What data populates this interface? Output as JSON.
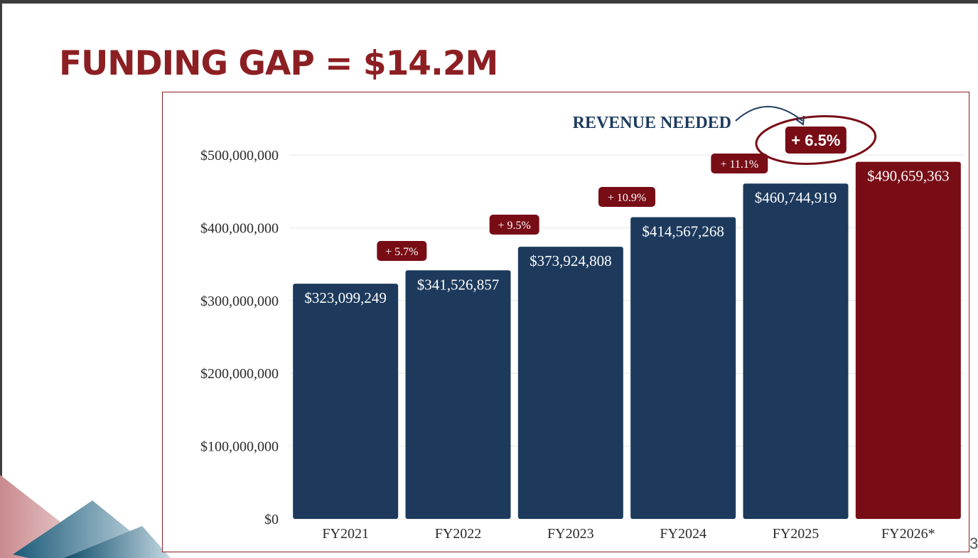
{
  "slide": {
    "title": "FUNDING GAP = $14.2M",
    "page_number": "3"
  },
  "colors": {
    "title": "#8c1f23",
    "bar_primary": "#1d3a5d",
    "bar_highlight": "#780d16",
    "badge": "#780d16",
    "annotation": "#1d3a5d",
    "frame": "#8c1f23"
  },
  "chart_data": {
    "type": "bar",
    "categories": [
      "FY2021",
      "FY2022",
      "FY2023",
      "FY2024",
      "FY2025",
      "FY2026*"
    ],
    "values": [
      323099249,
      341526857,
      373924808,
      414567268,
      460744919,
      490659363
    ],
    "data_labels": [
      "$323,099,249",
      "$341,526,857",
      "$373,924,808",
      "$414,567,268",
      "$460,744,919",
      "$490,659,363"
    ],
    "growth_labels": [
      "",
      "+ 5.7%",
      "+ 9.5%",
      "+ 10.9%",
      "+ 11.1%",
      "+ 6.5%"
    ],
    "highlight_index": 5,
    "ylim": [
      0,
      500000000
    ],
    "yticks": [
      0,
      100000000,
      200000000,
      300000000,
      400000000,
      500000000
    ],
    "ytick_labels": [
      "$0",
      "$100,000,000",
      "$200,000,000",
      "$300,000,000",
      "$400,000,000",
      "$500,000,000"
    ],
    "annotation": "REVENUE NEEDED",
    "grid": true,
    "xlabel": "",
    "ylabel": ""
  }
}
